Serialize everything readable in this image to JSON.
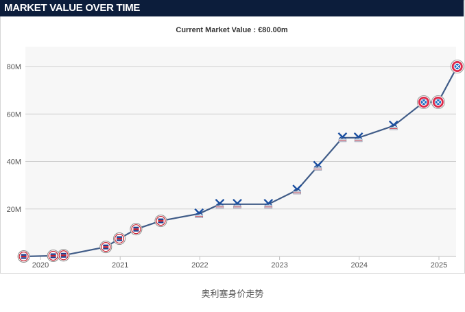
{
  "header": {
    "title": "MARKET VALUE OVER TIME"
  },
  "subtitle": "Current Market Value : €80.00m",
  "caption": "奥利塞身价走势",
  "watermark": "",
  "colors": {
    "header_bg": "#0c1d3b",
    "line": "#3f5b87",
    "grid": "#cfcfcf",
    "plot_bg": "#f7f7f7"
  },
  "chart_data": {
    "type": "line",
    "title": "MARKET VALUE OVER TIME",
    "xlabel": "",
    "ylabel": "",
    "xlim": [
      2019.79,
      2025.23
    ],
    "ylim": [
      0,
      85
    ],
    "x_ticks": [
      2020,
      2021,
      2022,
      2023,
      2024,
      2025
    ],
    "x_tick_labels": [
      "2020",
      "2021",
      "2022",
      "2023",
      "2024",
      "2025"
    ],
    "y_ticks": [
      20,
      40,
      60,
      80
    ],
    "y_tick_labels": [
      "20M",
      "40M",
      "60M",
      "80M"
    ],
    "grid": true,
    "series": [
      {
        "values_unit": "€m",
        "points": [
          {
            "x": 2019.79,
            "y": 0.0,
            "club": "Reading"
          },
          {
            "x": 2020.16,
            "y": 0.3,
            "club": "Reading"
          },
          {
            "x": 2020.29,
            "y": 0.5,
            "club": "Reading"
          },
          {
            "x": 2020.82,
            "y": 4.0,
            "club": "Reading"
          },
          {
            "x": 2020.99,
            "y": 7.5,
            "club": "Reading"
          },
          {
            "x": 2021.2,
            "y": 11.5,
            "club": "Reading"
          },
          {
            "x": 2021.51,
            "y": 15.0,
            "club": "Reading"
          },
          {
            "x": 2021.99,
            "y": 18.0,
            "club": "Crystal Palace"
          },
          {
            "x": 2022.25,
            "y": 22.0,
            "club": "Crystal Palace"
          },
          {
            "x": 2022.47,
            "y": 22.0,
            "club": "Crystal Palace"
          },
          {
            "x": 2022.86,
            "y": 22.0,
            "club": "Crystal Palace"
          },
          {
            "x": 2023.22,
            "y": 28.0,
            "club": "Crystal Palace"
          },
          {
            "x": 2023.48,
            "y": 38.0,
            "club": "Crystal Palace"
          },
          {
            "x": 2023.79,
            "y": 50.0,
            "club": "Crystal Palace"
          },
          {
            "x": 2023.99,
            "y": 50.0,
            "club": "Crystal Palace"
          },
          {
            "x": 2024.43,
            "y": 55.0,
            "club": "Crystal Palace"
          },
          {
            "x": 2024.81,
            "y": 65.0,
            "club": "Bayern Munich"
          },
          {
            "x": 2024.99,
            "y": 65.0,
            "club": "Bayern Munich"
          },
          {
            "x": 2025.23,
            "y": 80.0,
            "club": "Bayern Munich"
          }
        ]
      }
    ]
  }
}
